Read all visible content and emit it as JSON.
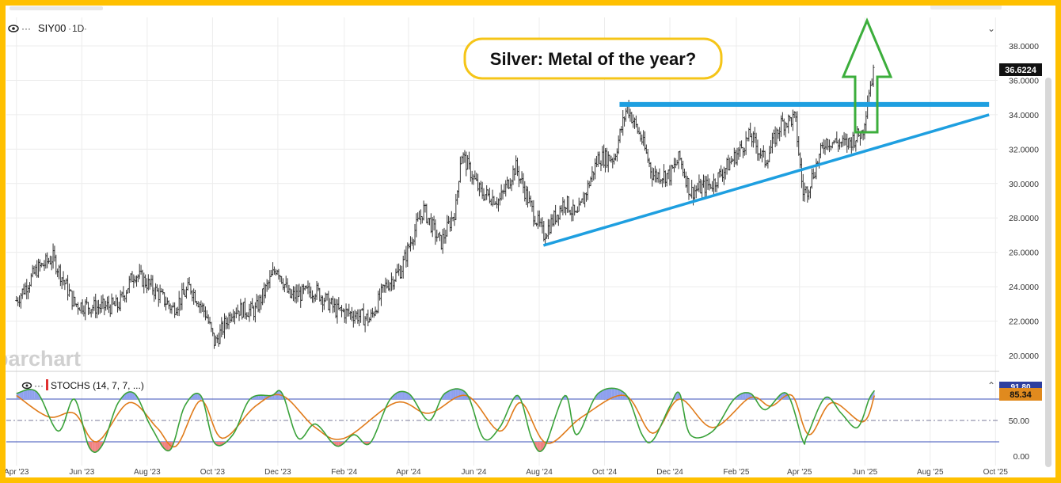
{
  "header": {
    "symbol": "SIY00",
    "interval": "1D",
    "menu_glyph": "···",
    "collapse_glyph": "⌄"
  },
  "annotation": {
    "title": "Silver:  Metal of the year?"
  },
  "watermark": "barchart",
  "colors": {
    "frame": "#ffc000",
    "price_bar": "#333333",
    "resistance_line": "#1e9fe0",
    "support_line": "#1e9fe0",
    "arrow": "#3cae3c",
    "title_border": "#f5c518",
    "stoch_k": "#3aa23a",
    "stoch_d": "#e07b1a",
    "stoch_band": "#3a4fb8",
    "last_price_bg": "#111111",
    "stoch_badge_bg": "#e08a1e"
  },
  "chart_data": [
    {
      "type": "ohlc",
      "symbol": "SIY00",
      "interval": "1D",
      "y_axis_ticks": [
        "38.0000",
        "36.0000",
        "34.0000",
        "32.0000",
        "30.0000",
        "28.0000",
        "26.0000",
        "24.0000",
        "22.0000",
        "20.0000"
      ],
      "ylim": [
        19.0,
        39.0
      ],
      "x_axis_ticks": [
        "Apr '23",
        "Jun '23",
        "Aug '23",
        "Oct '23",
        "Dec '23",
        "Feb '24",
        "Apr '24",
        "Jun '24",
        "Aug '24",
        "Oct '24",
        "Dec '24",
        "Feb '25",
        "Apr '25",
        "Jun '25",
        "Aug '25",
        "Oct '25"
      ],
      "last_price": "36.6224",
      "close_path": [
        [
          "2023-04-01",
          23.2
        ],
        [
          "2023-04-20",
          25.0
        ],
        [
          "2023-05-05",
          25.7
        ],
        [
          "2023-05-25",
          23.0
        ],
        [
          "2023-06-15",
          22.8
        ],
        [
          "2023-07-05",
          22.9
        ],
        [
          "2023-07-20",
          24.8
        ],
        [
          "2023-08-05",
          24.0
        ],
        [
          "2023-08-25",
          22.7
        ],
        [
          "2023-09-10",
          24.0
        ],
        [
          "2023-09-25",
          22.4
        ],
        [
          "2023-10-03",
          20.7
        ],
        [
          "2023-10-20",
          22.7
        ],
        [
          "2023-11-10",
          22.6
        ],
        [
          "2023-11-30",
          25.2
        ],
        [
          "2023-12-12",
          23.4
        ],
        [
          "2024-01-05",
          23.8
        ],
        [
          "2024-01-25",
          22.6
        ],
        [
          "2024-02-10",
          22.4
        ],
        [
          "2024-02-25",
          22.1
        ],
        [
          "2024-03-10",
          24.0
        ],
        [
          "2024-03-25",
          25.0
        ],
        [
          "2024-04-05",
          27.0
        ],
        [
          "2024-04-15",
          28.5
        ],
        [
          "2024-05-01",
          26.5
        ],
        [
          "2024-05-15",
          28.5
        ],
        [
          "2024-05-20",
          31.8
        ],
        [
          "2024-06-07",
          29.5
        ],
        [
          "2024-06-25",
          29.0
        ],
        [
          "2024-07-10",
          31.0
        ],
        [
          "2024-07-25",
          28.5
        ],
        [
          "2024-08-05",
          27.0
        ],
        [
          "2024-08-25",
          29.0
        ],
        [
          "2024-09-05",
          28.0
        ],
        [
          "2024-09-25",
          31.5
        ],
        [
          "2024-10-10",
          31.5
        ],
        [
          "2024-10-22",
          34.5
        ],
        [
          "2024-11-05",
          32.5
        ],
        [
          "2024-11-15",
          30.5
        ],
        [
          "2024-12-01",
          30.5
        ],
        [
          "2024-12-10",
          31.5
        ],
        [
          "2024-12-20",
          29.5
        ],
        [
          "2025-01-10",
          30.0
        ],
        [
          "2025-01-30",
          31.5
        ],
        [
          "2025-02-14",
          32.8
        ],
        [
          "2025-02-28",
          31.3
        ],
        [
          "2025-03-15",
          33.5
        ],
        [
          "2025-03-28",
          33.8
        ],
        [
          "2025-04-04",
          29.5
        ],
        [
          "2025-04-08",
          29.6
        ],
        [
          "2025-04-25",
          32.5
        ],
        [
          "2025-05-15",
          32.3
        ],
        [
          "2025-05-30",
          33.0
        ],
        [
          "2025-06-05",
          35.5
        ],
        [
          "2025-06-10",
          36.6
        ]
      ],
      "series": [
        {
          "name": "Resistance",
          "type": "line",
          "x": [
            "2024-10-15",
            "2025-09-25"
          ],
          "y": [
            34.6,
            34.6
          ]
        },
        {
          "name": "Support",
          "type": "line",
          "x": [
            "2024-08-05",
            "2025-09-25"
          ],
          "y": [
            26.4,
            34.0
          ]
        }
      ],
      "annotation": "Silver:  Metal of the year?"
    },
    {
      "type": "line",
      "indicator": "STOCHS (14, 7, 7, ...)",
      "y_axis_ticks": [
        "50.00",
        "0.00"
      ],
      "ylim": [
        0,
        100
      ],
      "bands": [
        20,
        80
      ],
      "last_value": "85.34",
      "k_value": "91.80",
      "k_path": [
        [
          "2023-04-01",
          88
        ],
        [
          "2023-04-20",
          90
        ],
        [
          "2023-05-10",
          35
        ],
        [
          "2023-05-25",
          80
        ],
        [
          "2023-06-08",
          12
        ],
        [
          "2023-06-20",
          15
        ],
        [
          "2023-07-05",
          75
        ],
        [
          "2023-07-20",
          88
        ],
        [
          "2023-08-05",
          40
        ],
        [
          "2023-08-22",
          8
        ],
        [
          "2023-09-05",
          70
        ],
        [
          "2023-09-20",
          85
        ],
        [
          "2023-10-03",
          18
        ],
        [
          "2023-10-20",
          30
        ],
        [
          "2023-11-05",
          80
        ],
        [
          "2023-11-25",
          85
        ],
        [
          "2023-12-05",
          88
        ],
        [
          "2023-12-20",
          25
        ],
        [
          "2024-01-05",
          45
        ],
        [
          "2024-01-25",
          14
        ],
        [
          "2024-02-10",
          30
        ],
        [
          "2024-02-25",
          18
        ],
        [
          "2024-03-15",
          80
        ],
        [
          "2024-04-01",
          88
        ],
        [
          "2024-04-20",
          50
        ],
        [
          "2024-05-05",
          88
        ],
        [
          "2024-05-25",
          88
        ],
        [
          "2024-06-10",
          25
        ],
        [
          "2024-06-25",
          40
        ],
        [
          "2024-07-12",
          85
        ],
        [
          "2024-07-25",
          25
        ],
        [
          "2024-08-05",
          10
        ],
        [
          "2024-08-25",
          85
        ],
        [
          "2024-09-05",
          30
        ],
        [
          "2024-09-25",
          88
        ],
        [
          "2024-10-20",
          88
        ],
        [
          "2024-11-05",
          30
        ],
        [
          "2024-11-15",
          22
        ],
        [
          "2024-12-01",
          70
        ],
        [
          "2024-12-10",
          88
        ],
        [
          "2024-12-20",
          30
        ],
        [
          "2025-01-10",
          35
        ],
        [
          "2025-01-30",
          80
        ],
        [
          "2025-02-14",
          88
        ],
        [
          "2025-02-28",
          65
        ],
        [
          "2025-03-20",
          88
        ],
        [
          "2025-04-04",
          22
        ],
        [
          "2025-04-08",
          28
        ],
        [
          "2025-04-25",
          82
        ],
        [
          "2025-05-10",
          60
        ],
        [
          "2025-05-25",
          40
        ],
        [
          "2025-06-05",
          80
        ],
        [
          "2025-06-10",
          92
        ]
      ],
      "d_path": [
        [
          "2023-04-01",
          85
        ],
        [
          "2023-05-01",
          55
        ],
        [
          "2023-05-25",
          60
        ],
        [
          "2023-06-15",
          20
        ],
        [
          "2023-07-15",
          75
        ],
        [
          "2023-08-10",
          40
        ],
        [
          "2023-08-28",
          14
        ],
        [
          "2023-09-20",
          78
        ],
        [
          "2023-10-10",
          25
        ],
        [
          "2023-11-10",
          70
        ],
        [
          "2023-12-05",
          85
        ],
        [
          "2024-01-05",
          40
        ],
        [
          "2024-02-01",
          25
        ],
        [
          "2024-03-20",
          75
        ],
        [
          "2024-04-20",
          60
        ],
        [
          "2024-05-25",
          85
        ],
        [
          "2024-06-25",
          35
        ],
        [
          "2024-07-15",
          75
        ],
        [
          "2024-08-08",
          18
        ],
        [
          "2024-09-10",
          55
        ],
        [
          "2024-10-20",
          85
        ],
        [
          "2024-11-15",
          32
        ],
        [
          "2024-12-10",
          80
        ],
        [
          "2025-01-10",
          40
        ],
        [
          "2025-02-14",
          82
        ],
        [
          "2025-03-05",
          70
        ],
        [
          "2025-03-25",
          85
        ],
        [
          "2025-04-10",
          30
        ],
        [
          "2025-05-01",
          75
        ],
        [
          "2025-05-30",
          48
        ],
        [
          "2025-06-10",
          85
        ]
      ]
    }
  ]
}
